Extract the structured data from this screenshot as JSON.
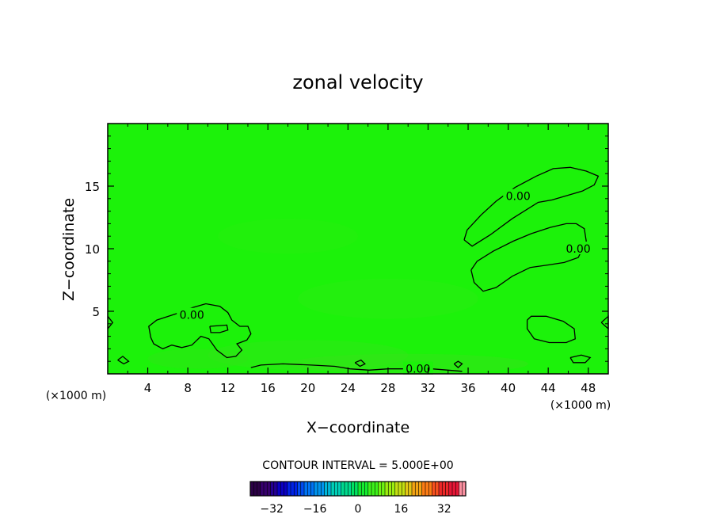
{
  "chart_data": {
    "type": "heatmap",
    "title": "zonal velocity",
    "xlabel": "X−coordinate",
    "ylabel": "Z−coordinate",
    "x_unit": "(×1000 m)",
    "y_unit": "(×1000 m)",
    "xlim": [
      0,
      50
    ],
    "ylim": [
      0,
      20
    ],
    "x_ticks": [
      4,
      8,
      12,
      16,
      20,
      24,
      28,
      32,
      36,
      40,
      44,
      48
    ],
    "y_ticks": [
      5,
      10,
      15
    ],
    "contour_interval_text": "CONTOUR INTERVAL = 5.000E+00",
    "contour_levels": [
      0
    ],
    "contour_label_text": "0.00",
    "background_value": 0,
    "background_color": "#1cf20a",
    "contours": [
      {
        "level": 0,
        "label": "0.00",
        "label_at": [
          41,
          14.2
        ],
        "points": [
          [
            35.6,
            10.7
          ],
          [
            35.9,
            11.5
          ],
          [
            37.3,
            12.7
          ],
          [
            38.8,
            13.8
          ],
          [
            40.7,
            14.9
          ],
          [
            42.8,
            15.8
          ],
          [
            44.5,
            16.4
          ],
          [
            46.2,
            16.5
          ],
          [
            47.8,
            16.2
          ],
          [
            49.0,
            15.8
          ],
          [
            48.6,
            15.1
          ],
          [
            47.4,
            14.6
          ],
          [
            44.4,
            13.9
          ],
          [
            43.0,
            13.7
          ],
          [
            40.4,
            12.4
          ],
          [
            38.2,
            11.1
          ],
          [
            36.4,
            10.2
          ],
          [
            35.6,
            10.7
          ]
        ]
      },
      {
        "level": 0,
        "label": "0.00",
        "label_at": [
          47,
          10
        ],
        "points": [
          [
            36.3,
            8.3
          ],
          [
            36.9,
            9.0
          ],
          [
            38.5,
            9.8
          ],
          [
            40.5,
            10.6
          ],
          [
            42.3,
            11.2
          ],
          [
            44.2,
            11.7
          ],
          [
            45.8,
            12.0
          ],
          [
            46.8,
            12.0
          ],
          [
            47.6,
            11.6
          ],
          [
            47.8,
            10.6
          ],
          [
            47.0,
            9.3
          ],
          [
            45.6,
            8.9
          ],
          [
            44.0,
            8.7
          ],
          [
            42.2,
            8.5
          ],
          [
            40.4,
            7.8
          ],
          [
            38.8,
            6.9
          ],
          [
            37.5,
            6.6
          ],
          [
            36.6,
            7.3
          ],
          [
            36.3,
            8.3
          ]
        ]
      },
      {
        "level": 0,
        "label": null,
        "points": [
          [
            41.9,
            4.3
          ],
          [
            42.3,
            4.6
          ],
          [
            43.8,
            4.6
          ],
          [
            45.5,
            4.2
          ],
          [
            46.6,
            3.6
          ],
          [
            46.7,
            2.8
          ],
          [
            45.8,
            2.5
          ],
          [
            44.1,
            2.5
          ],
          [
            42.6,
            2.8
          ],
          [
            41.9,
            3.6
          ],
          [
            41.9,
            4.3
          ]
        ]
      },
      {
        "level": 0,
        "label": "0.00",
        "label_at": [
          8.4,
          4.7
        ],
        "points": [
          [
            4.3,
            2.9
          ],
          [
            4.1,
            3.8
          ],
          [
            4.9,
            4.3
          ],
          [
            6.8,
            4.8
          ],
          [
            8.5,
            5.3
          ],
          [
            9.8,
            5.6
          ],
          [
            11.2,
            5.4
          ],
          [
            12.0,
            4.9
          ],
          [
            12.4,
            4.3
          ],
          [
            13.2,
            3.8
          ],
          [
            14.0,
            3.8
          ],
          [
            14.3,
            3.2
          ],
          [
            13.9,
            2.7
          ],
          [
            12.9,
            2.4
          ],
          [
            13.4,
            1.9
          ],
          [
            12.8,
            1.4
          ],
          [
            11.9,
            1.3
          ],
          [
            10.9,
            1.9
          ],
          [
            10.1,
            2.8
          ],
          [
            9.3,
            3.0
          ],
          [
            8.4,
            2.3
          ],
          [
            7.4,
            2.1
          ],
          [
            6.4,
            2.3
          ],
          [
            5.5,
            2.0
          ],
          [
            4.6,
            2.4
          ],
          [
            4.3,
            2.9
          ]
        ]
      },
      {
        "level": 0,
        "label": null,
        "points": [
          [
            10.2,
            3.8
          ],
          [
            11.9,
            3.9
          ],
          [
            12.0,
            3.5
          ],
          [
            11.2,
            3.3
          ],
          [
            10.3,
            3.3
          ],
          [
            10.2,
            3.8
          ]
        ]
      },
      {
        "level": 0,
        "label": "0.00",
        "label_at": [
          31,
          0.4
        ],
        "points": [
          [
            14.3,
            0.5
          ],
          [
            15.3,
            0.7
          ],
          [
            17.5,
            0.8
          ],
          [
            20.3,
            0.7
          ],
          [
            22.7,
            0.6
          ],
          [
            24.2,
            0.4
          ],
          [
            26.1,
            0.3
          ],
          [
            28.0,
            0.4
          ],
          [
            30.4,
            0.4
          ],
          [
            32.4,
            0.4
          ],
          [
            34.0,
            0.3
          ],
          [
            35.4,
            0.2
          ]
        ]
      },
      {
        "level": 0,
        "label": null,
        "points": [
          [
            49.3,
            4.1
          ],
          [
            50,
            4.6
          ],
          [
            50,
            3.6
          ],
          [
            49.3,
            4.1
          ]
        ]
      },
      {
        "level": 0,
        "label": null,
        "points": [
          [
            0,
            4.6
          ],
          [
            0.5,
            4.1
          ],
          [
            0,
            3.6
          ]
        ]
      },
      {
        "level": 0,
        "label": null,
        "points": [
          [
            1.0,
            1.1
          ],
          [
            1.5,
            1.4
          ],
          [
            2.1,
            1.0
          ],
          [
            1.6,
            0.8
          ],
          [
            1.0,
            1.1
          ]
        ]
      },
      {
        "level": 0,
        "label": null,
        "points": [
          [
            24.7,
            0.9
          ],
          [
            25.3,
            1.1
          ],
          [
            25.7,
            0.8
          ],
          [
            25.2,
            0.6
          ],
          [
            24.7,
            0.9
          ]
        ]
      },
      {
        "level": 0,
        "label": null,
        "points": [
          [
            34.6,
            0.8
          ],
          [
            35.0,
            1.0
          ],
          [
            35.4,
            0.8
          ],
          [
            35.0,
            0.5
          ],
          [
            34.6,
            0.8
          ]
        ]
      },
      {
        "level": 0,
        "label": null,
        "points": [
          [
            46.2,
            1.3
          ],
          [
            47.3,
            1.5
          ],
          [
            48.2,
            1.3
          ],
          [
            47.7,
            0.9
          ],
          [
            46.5,
            0.9
          ],
          [
            46.2,
            1.3
          ]
        ]
      }
    ],
    "colorbar": {
      "tick_labels": [
        "−32",
        "−16",
        "0",
        "16",
        "32"
      ],
      "tick_values": [
        -32,
        -16,
        0,
        16,
        32
      ],
      "range": [
        -40,
        40
      ],
      "colors": [
        "#2b0045",
        "#36006c",
        "#250094",
        "#0b00c4",
        "#0022e6",
        "#004cf2",
        "#0074f6",
        "#0094ee",
        "#00b8da",
        "#00d0b8",
        "#00da8e",
        "#00e260",
        "#14ec30",
        "#3cf21a",
        "#6ef412",
        "#9cee10",
        "#c4e012",
        "#e2c614",
        "#f4a414",
        "#fc7c14",
        "#f8501e",
        "#ee2828",
        "#e61636",
        "#fa90a0"
      ]
    }
  }
}
